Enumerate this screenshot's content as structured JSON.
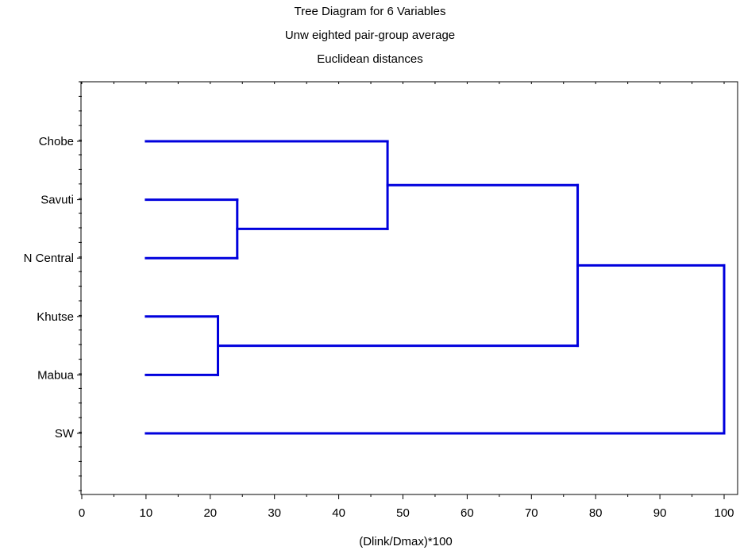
{
  "chart_data": {
    "type": "dendrogram",
    "title": [
      "Tree Diagram for 6 Variables",
      "Unw eighted pair-group average",
      "Euclidean distances"
    ],
    "xlabel": "(Dlink/Dmax)*100",
    "xlim": [
      0,
      100
    ],
    "xticks": [
      0,
      10,
      20,
      30,
      40,
      50,
      60,
      70,
      80,
      90,
      100
    ],
    "leaves": [
      "Chobe",
      "Savuti",
      "N Central",
      "Khutse",
      "Mabua",
      "SW"
    ],
    "leaf_start": 10,
    "merges": [
      {
        "left": "Khutse",
        "right": "Mabua",
        "height": 21.2
      },
      {
        "left": "Savuti",
        "right": "N Central",
        "height": 24.2
      },
      {
        "left": "Chobe",
        "right": "C2",
        "height": 47.6,
        "id": "C3"
      },
      {
        "left": "C3",
        "right": "C1",
        "height": 77.2,
        "id": "C4"
      },
      {
        "left": "C4",
        "right": "SW",
        "height": 100
      }
    ],
    "line_color": "#0000dd",
    "grid": false
  }
}
